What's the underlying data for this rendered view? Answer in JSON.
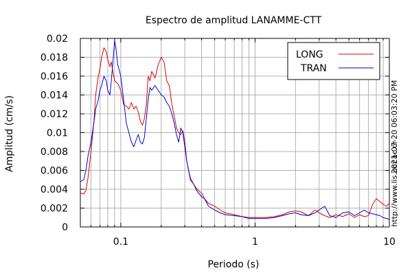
{
  "chart_data": {
    "type": "line",
    "title": "Espectro de amplitud LANAMME-CTT",
    "xlabel": "Periodo (s)",
    "ylabel": "Amplitud (cm/s)",
    "x_scale": "log",
    "xlim": [
      0.05,
      10
    ],
    "ylim": [
      0,
      0.02
    ],
    "grid": true,
    "legend_position": "top-right",
    "x_ticks": [
      {
        "value": 0.1,
        "label": "0.1"
      },
      {
        "value": 1,
        "label": "1"
      },
      {
        "value": 10,
        "label": "10"
      }
    ],
    "y_ticks": [
      {
        "value": 0,
        "label": "0"
      },
      {
        "value": 0.002,
        "label": "0.002"
      },
      {
        "value": 0.004,
        "label": "0.004"
      },
      {
        "value": 0.006,
        "label": "0.006"
      },
      {
        "value": 0.008,
        "label": "0.008"
      },
      {
        "value": 0.01,
        "label": "0.01"
      },
      {
        "value": 0.012,
        "label": "0.012"
      },
      {
        "value": 0.014,
        "label": "0.014"
      },
      {
        "value": 0.016,
        "label": "0.016"
      },
      {
        "value": 0.018,
        "label": "0.018"
      },
      {
        "value": 0.02,
        "label": "0.02"
      }
    ],
    "series": [
      {
        "name": "LONG",
        "color": "#dd0000",
        "points": [
          [
            0.05,
            0.0036
          ],
          [
            0.053,
            0.0035
          ],
          [
            0.055,
            0.0039
          ],
          [
            0.057,
            0.0052
          ],
          [
            0.06,
            0.008
          ],
          [
            0.063,
            0.011
          ],
          [
            0.065,
            0.014
          ],
          [
            0.068,
            0.016
          ],
          [
            0.07,
            0.0168
          ],
          [
            0.072,
            0.018
          ],
          [
            0.075,
            0.019
          ],
          [
            0.078,
            0.0186
          ],
          [
            0.08,
            0.0178
          ],
          [
            0.083,
            0.017
          ],
          [
            0.085,
            0.0175
          ],
          [
            0.088,
            0.0162
          ],
          [
            0.09,
            0.0155
          ],
          [
            0.095,
            0.0152
          ],
          [
            0.1,
            0.0145
          ],
          [
            0.105,
            0.013
          ],
          [
            0.11,
            0.0128
          ],
          [
            0.115,
            0.0125
          ],
          [
            0.12,
            0.0132
          ],
          [
            0.125,
            0.0125
          ],
          [
            0.13,
            0.0128
          ],
          [
            0.135,
            0.0122
          ],
          [
            0.14,
            0.0112
          ],
          [
            0.145,
            0.0108
          ],
          [
            0.15,
            0.0115
          ],
          [
            0.155,
            0.013
          ],
          [
            0.16,
            0.016
          ],
          [
            0.165,
            0.0155
          ],
          [
            0.17,
            0.0165
          ],
          [
            0.18,
            0.0158
          ],
          [
            0.19,
            0.0172
          ],
          [
            0.2,
            0.018
          ],
          [
            0.21,
            0.0175
          ],
          [
            0.22,
            0.0155
          ],
          [
            0.23,
            0.015
          ],
          [
            0.24,
            0.013
          ],
          [
            0.25,
            0.0118
          ],
          [
            0.26,
            0.0105
          ],
          [
            0.27,
            0.01
          ],
          [
            0.28,
            0.0098
          ],
          [
            0.29,
            0.0102
          ],
          [
            0.3,
            0.009
          ],
          [
            0.31,
            0.007
          ],
          [
            0.32,
            0.006
          ],
          [
            0.33,
            0.0052
          ],
          [
            0.35,
            0.0045
          ],
          [
            0.37,
            0.004
          ],
          [
            0.4,
            0.0036
          ],
          [
            0.42,
            0.003
          ],
          [
            0.45,
            0.0025
          ],
          [
            0.5,
            0.0022
          ],
          [
            0.55,
            0.0018
          ],
          [
            0.6,
            0.0015
          ],
          [
            0.7,
            0.0013
          ],
          [
            0.8,
            0.0011
          ],
          [
            0.9,
            0.001
          ],
          [
            1.0,
            0.001
          ],
          [
            1.2,
            0.001
          ],
          [
            1.4,
            0.0011
          ],
          [
            1.6,
            0.0013
          ],
          [
            1.8,
            0.0016
          ],
          [
            2.0,
            0.0017
          ],
          [
            2.2,
            0.0016
          ],
          [
            2.5,
            0.0012
          ],
          [
            2.8,
            0.0018
          ],
          [
            3.0,
            0.0015
          ],
          [
            3.3,
            0.0012
          ],
          [
            3.6,
            0.001
          ],
          [
            4.0,
            0.0013
          ],
          [
            4.5,
            0.0011
          ],
          [
            5.0,
            0.0014
          ],
          [
            5.5,
            0.001
          ],
          [
            6.0,
            0.0013
          ],
          [
            6.5,
            0.0011
          ],
          [
            7.0,
            0.0012
          ],
          [
            7.5,
            0.0024
          ],
          [
            8.0,
            0.003
          ],
          [
            8.5,
            0.0027
          ],
          [
            9.0,
            0.0024
          ],
          [
            9.5,
            0.0022
          ],
          [
            10.0,
            0.0025
          ]
        ]
      },
      {
        "name": "TRAN",
        "color": "#0000cc",
        "points": [
          [
            0.05,
            0.0048
          ],
          [
            0.053,
            0.005
          ],
          [
            0.055,
            0.006
          ],
          [
            0.057,
            0.0075
          ],
          [
            0.06,
            0.009
          ],
          [
            0.063,
            0.011
          ],
          [
            0.065,
            0.0125
          ],
          [
            0.068,
            0.0135
          ],
          [
            0.07,
            0.0145
          ],
          [
            0.072,
            0.015
          ],
          [
            0.075,
            0.016
          ],
          [
            0.078,
            0.0155
          ],
          [
            0.08,
            0.0145
          ],
          [
            0.083,
            0.014
          ],
          [
            0.085,
            0.0155
          ],
          [
            0.088,
            0.018
          ],
          [
            0.09,
            0.0198
          ],
          [
            0.092,
            0.019
          ],
          [
            0.095,
            0.0172
          ],
          [
            0.1,
            0.016
          ],
          [
            0.105,
            0.0135
          ],
          [
            0.11,
            0.011
          ],
          [
            0.115,
            0.01
          ],
          [
            0.12,
            0.009
          ],
          [
            0.125,
            0.0085
          ],
          [
            0.13,
            0.0092
          ],
          [
            0.135,
            0.0098
          ],
          [
            0.14,
            0.009
          ],
          [
            0.145,
            0.0088
          ],
          [
            0.15,
            0.0095
          ],
          [
            0.155,
            0.0115
          ],
          [
            0.16,
            0.0135
          ],
          [
            0.165,
            0.0148
          ],
          [
            0.17,
            0.0145
          ],
          [
            0.18,
            0.015
          ],
          [
            0.19,
            0.0145
          ],
          [
            0.2,
            0.014
          ],
          [
            0.21,
            0.0138
          ],
          [
            0.22,
            0.0132
          ],
          [
            0.23,
            0.0128
          ],
          [
            0.24,
            0.012
          ],
          [
            0.25,
            0.011
          ],
          [
            0.26,
            0.0098
          ],
          [
            0.27,
            0.009
          ],
          [
            0.28,
            0.0105
          ],
          [
            0.29,
            0.01
          ],
          [
            0.3,
            0.0085
          ],
          [
            0.31,
            0.007
          ],
          [
            0.32,
            0.006
          ],
          [
            0.33,
            0.005
          ],
          [
            0.35,
            0.0045
          ],
          [
            0.37,
            0.0038
          ],
          [
            0.4,
            0.0032
          ],
          [
            0.42,
            0.003
          ],
          [
            0.45,
            0.0022
          ],
          [
            0.5,
            0.0018
          ],
          [
            0.55,
            0.0015
          ],
          [
            0.6,
            0.0013
          ],
          [
            0.7,
            0.0012
          ],
          [
            0.8,
            0.0011
          ],
          [
            0.9,
            0.0009
          ],
          [
            1.0,
            0.0009
          ],
          [
            1.2,
            0.0009
          ],
          [
            1.4,
            0.001
          ],
          [
            1.6,
            0.0012
          ],
          [
            1.8,
            0.0014
          ],
          [
            2.0,
            0.0015
          ],
          [
            2.2,
            0.0013
          ],
          [
            2.5,
            0.0012
          ],
          [
            2.8,
            0.0015
          ],
          [
            3.0,
            0.0018
          ],
          [
            3.3,
            0.0022
          ],
          [
            3.6,
            0.0012
          ],
          [
            4.0,
            0.001
          ],
          [
            4.5,
            0.0015
          ],
          [
            5.0,
            0.0016
          ],
          [
            5.5,
            0.0012
          ],
          [
            6.0,
            0.0015
          ],
          [
            6.5,
            0.0018
          ],
          [
            7.0,
            0.0015
          ],
          [
            7.5,
            0.0014
          ],
          [
            8.0,
            0.0013
          ],
          [
            8.5,
            0.0012
          ],
          [
            9.0,
            0.001
          ],
          [
            9.5,
            0.0009
          ],
          [
            10.0,
            0.0008
          ]
        ]
      }
    ]
  },
  "side_labels": {
    "timestamp": "2021-07-20 06:03:20 PM",
    "website": "http://www.lis.ucr.ac.cr"
  }
}
